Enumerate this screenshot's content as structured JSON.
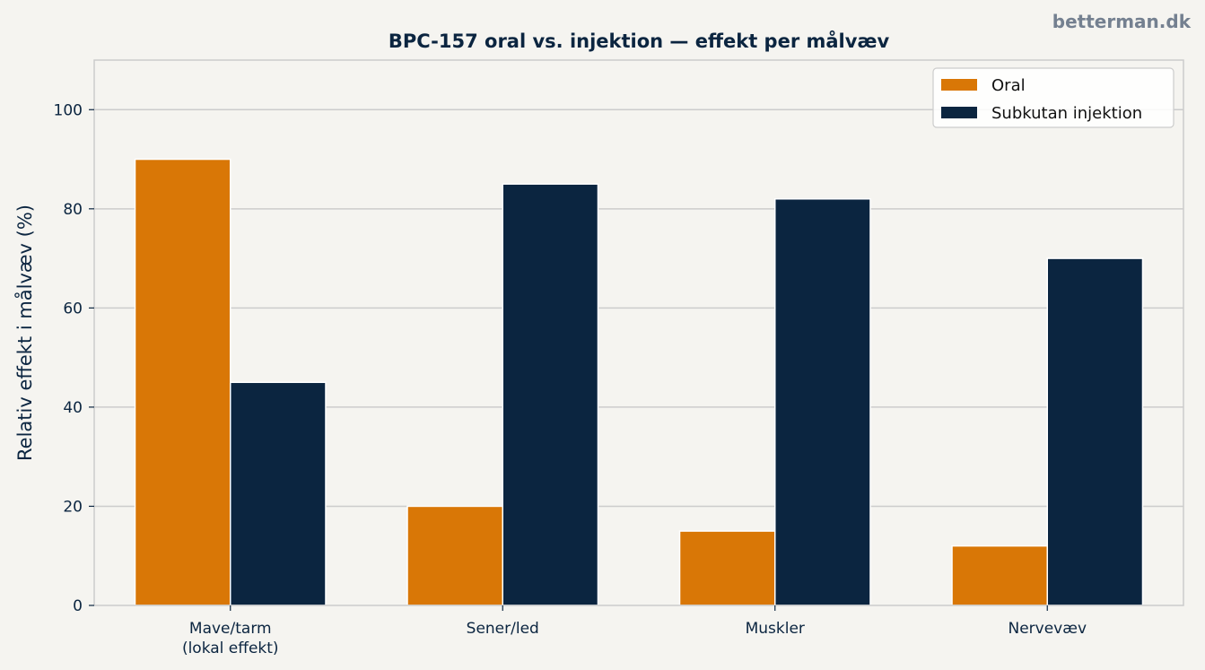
{
  "watermark": "betterman.dk",
  "colors": {
    "background": "#f5f4f0",
    "oral": "#d97706",
    "injection": "#0b2540",
    "text": "#0b2540",
    "grid": "#cccccc",
    "axis": "#cccccc"
  },
  "chart_data": {
    "type": "bar",
    "title": "BPC-157 oral vs. injektion — effekt per målvæv",
    "xlabel": "",
    "ylabel": "Relativ effekt i målvæv (%)",
    "categories": [
      [
        "Mave/tarm",
        "(lokal effekt)"
      ],
      [
        "Sener/led"
      ],
      [
        "Muskler"
      ],
      [
        "Nervevæv"
      ]
    ],
    "series": [
      {
        "name": "Oral",
        "color": "#d97706",
        "values": [
          90,
          20,
          15,
          12
        ]
      },
      {
        "name": "Subkutan injektion",
        "color": "#0b2540",
        "values": [
          45,
          85,
          82,
          70
        ]
      }
    ],
    "ylim": [
      0,
      110
    ],
    "yticks": [
      0,
      20,
      40,
      60,
      80,
      100
    ],
    "grid": "horizontal",
    "legend_position": "top-right"
  }
}
